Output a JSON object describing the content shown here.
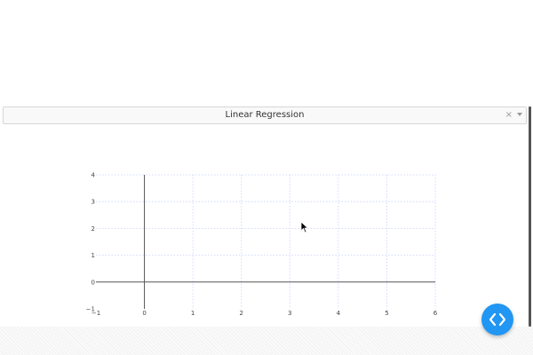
{
  "selector": {
    "value": "Linear Regression",
    "clear_glyph": "×",
    "arrow_icon": "chevron-down-icon"
  },
  "chart_data": {
    "type": "scatter",
    "title": "",
    "xlabel": "",
    "ylabel": "",
    "xlim": [
      -1,
      6
    ],
    "ylim": [
      -1,
      4
    ],
    "x_ticks": [
      -1,
      0,
      1,
      2,
      3,
      4,
      5,
      6
    ],
    "y_ticks": [
      -1,
      0,
      1,
      2,
      3,
      4
    ],
    "x_tick_labels": [
      "−1",
      "0",
      "1",
      "2",
      "3",
      "4",
      "5",
      "6"
    ],
    "y_tick_labels": [
      "−1",
      "0",
      "1",
      "2",
      "3",
      "4"
    ],
    "grid": true,
    "grid_color": "#c8d0ff",
    "axis_color": "#555555",
    "points": []
  },
  "fab": {
    "icon": "code-brackets-icon",
    "color": "#2196f3"
  }
}
